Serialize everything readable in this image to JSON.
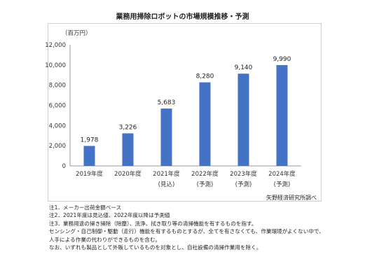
{
  "title": "業務用掃除ロボットの市場規模推移・予測",
  "source": "矢野経済研究所調べ",
  "notes": [
    "注1．メーカー出荷金額ベース",
    "注2．2021年度は見込値、2022年度以降は予測値",
    "注3．業務用途の掃き掃除（除塵）、洗浄、拭き取り等の清掃機能を有するものを指す。",
    "センシング・自己制御・駆動（走行）機能を有するものとするが、全てを有さなくても、作業環境がよくない中で、",
    "人手による作業の代わりができるものを含む。",
    "なお、いずれも製品として外販しているものを対象とし、自社設備の清掃作業用を除く。"
  ],
  "chart_data": {
    "type": "bar",
    "unit_label": "（百万円）",
    "categories": [
      "2019年度",
      "2020年度",
      "2021年度",
      "2022年度",
      "2023年度",
      "2024年度"
    ],
    "sublabels": [
      "",
      "",
      "(見込)",
      "(予測)",
      "(予測)",
      "(予測)"
    ],
    "values": [
      1978,
      3226,
      5683,
      8280,
      9140,
      9990
    ],
    "value_labels": [
      "1,978",
      "3,226",
      "5,683",
      "8,280",
      "9,140",
      "9,990"
    ],
    "ylim": [
      0,
      12000
    ],
    "yticks": [
      0,
      2000,
      4000,
      6000,
      8000,
      10000,
      12000
    ],
    "ytick_labels": [
      "0",
      "2,000",
      "4,000",
      "6,000",
      "8,000",
      "10,000",
      "12,000"
    ],
    "bar_color": "#4472c4",
    "grid": false
  }
}
